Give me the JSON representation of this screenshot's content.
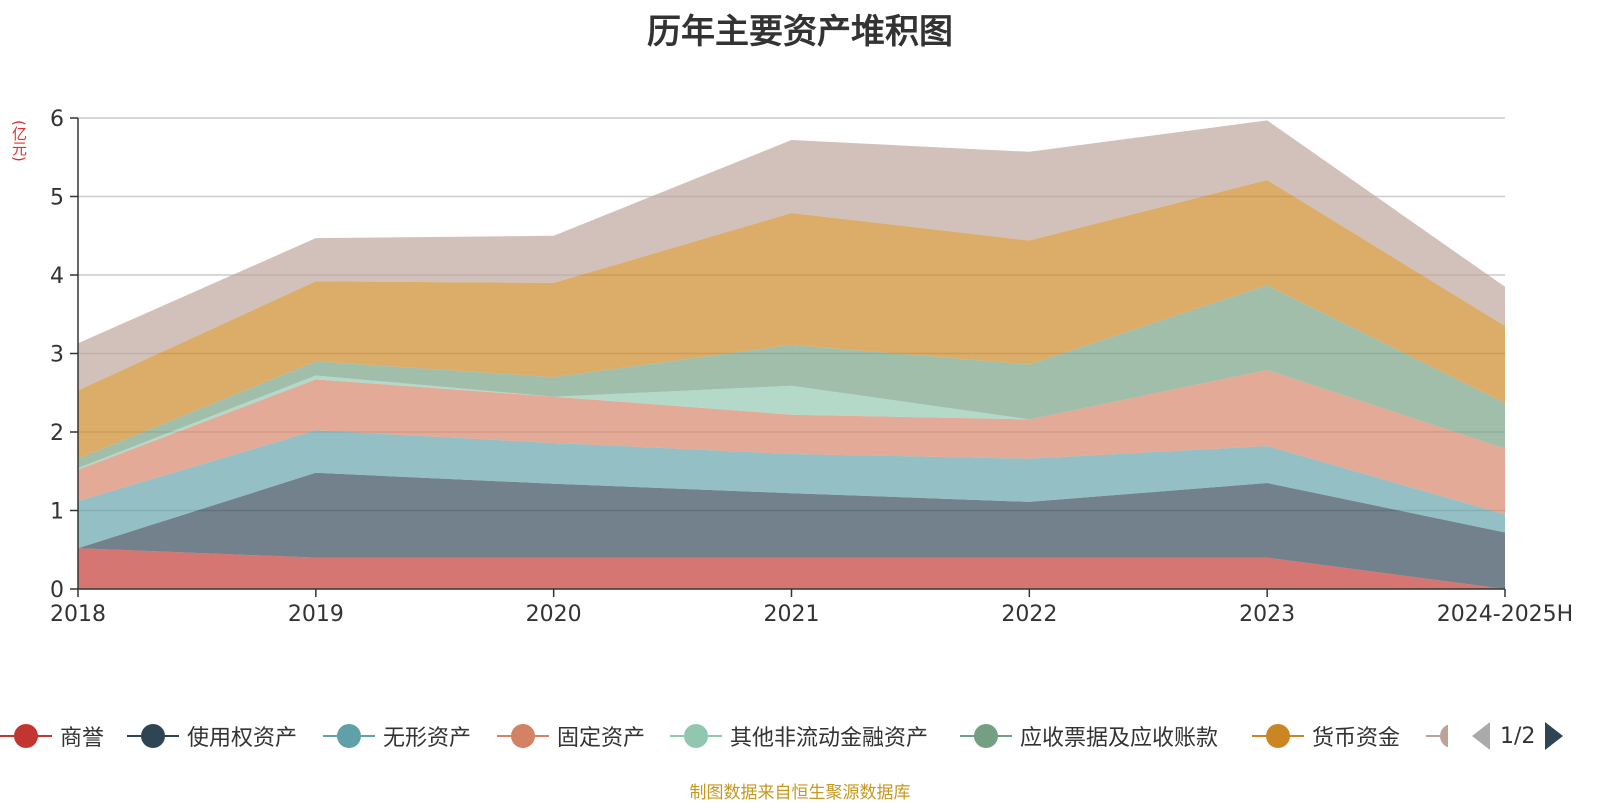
{
  "title": "历年主要资产堆积图",
  "unit_label": "(亿元)",
  "source_note": "制图数据来自恒生聚源数据库",
  "legend_page": "1/2",
  "chart_data": {
    "type": "area",
    "stacked": true,
    "title": "历年主要资产堆积图",
    "ylabel": "(亿元)",
    "ylim": [
      0,
      6
    ],
    "yticks": [
      0,
      1,
      2,
      3,
      4,
      5,
      6
    ],
    "grid": true,
    "legend_position": "bottom",
    "categories": [
      "2018",
      "2019",
      "2020",
      "2021",
      "2022",
      "2023",
      "2024-2025H"
    ],
    "series": [
      {
        "name": "商誉",
        "color": "#c23531",
        "values": [
          0.52,
          0.4,
          0.4,
          0.4,
          0.4,
          0.4,
          0.0
        ]
      },
      {
        "name": "使用权资产",
        "color": "#2f4554",
        "values": [
          0.0,
          1.08,
          0.94,
          0.82,
          0.71,
          0.95,
          0.72
        ]
      },
      {
        "name": "无形资产",
        "color": "#61a0a8",
        "values": [
          0.6,
          0.54,
          0.52,
          0.5,
          0.55,
          0.47,
          0.23
        ]
      },
      {
        "name": "固定资产",
        "color": "#d48265",
        "values": [
          0.4,
          0.65,
          0.59,
          0.5,
          0.5,
          0.97,
          0.84
        ]
      },
      {
        "name": "其他非流动金融资产",
        "color": "#91c7ae",
        "values": [
          0.02,
          0.05,
          0.0,
          0.37,
          0.0,
          0.0,
          0.0
        ]
      },
      {
        "name": "应收票据及应收账款",
        "color": "#749f83",
        "values": [
          0.12,
          0.18,
          0.25,
          0.52,
          0.7,
          1.08,
          0.58
        ]
      },
      {
        "name": "货币资金",
        "color": "#ca8622",
        "values": [
          0.87,
          1.02,
          1.2,
          1.68,
          1.58,
          1.34,
          0.98
        ]
      },
      {
        "name": "",
        "color": "#bda29a",
        "values": [
          0.6,
          0.55,
          0.6,
          0.93,
          1.13,
          0.76,
          0.5
        ]
      }
    ]
  }
}
